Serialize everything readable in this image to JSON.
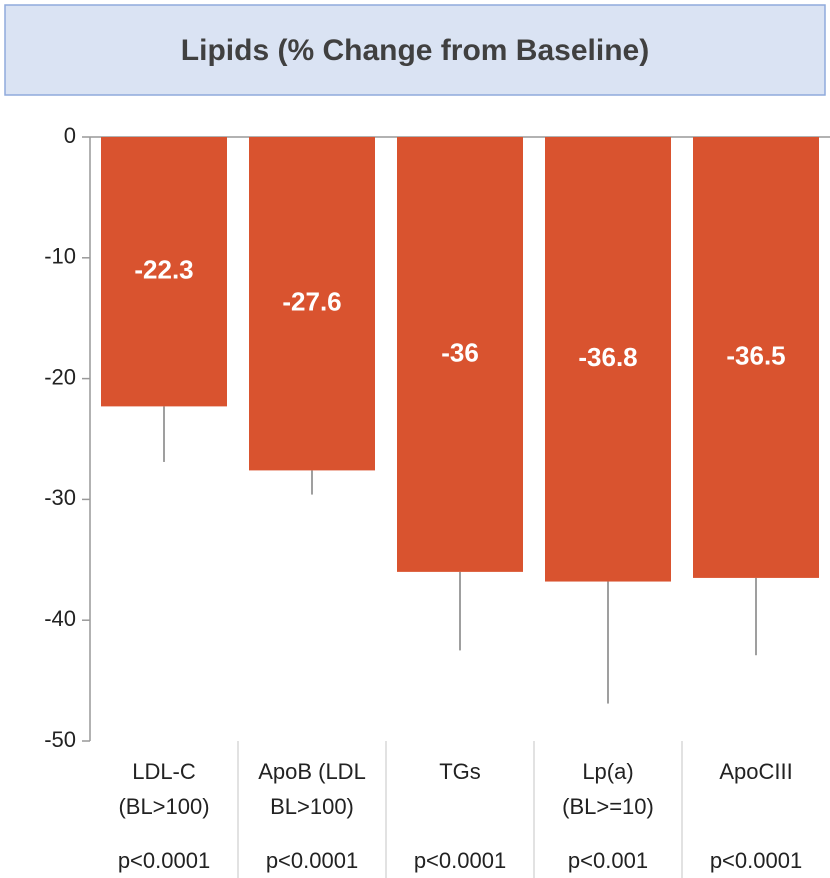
{
  "chart_data": {
    "type": "bar",
    "title": "Lipids (% Change from Baseline)",
    "categories": [
      [
        "LDL-C",
        "(BL>100)"
      ],
      [
        "ApoB (LDL",
        "BL>100)"
      ],
      [
        "TGs"
      ],
      [
        "Lp(a)",
        "(BL>=10)"
      ],
      [
        "ApoCIII"
      ]
    ],
    "p_values": [
      "p<0.0001",
      "p<0.0001",
      "p<0.0001",
      "p<0.001",
      "p<0.0001"
    ],
    "values": [
      -22.3,
      -27.6,
      -36,
      -36.8,
      -36.5
    ],
    "errors": [
      4.6,
      2.0,
      6.5,
      10.1,
      6.4
    ],
    "color": "#d9532f",
    "ylim": [
      -50,
      0
    ],
    "yticks": [
      0,
      -10,
      -20,
      -30,
      -40,
      -50
    ]
  }
}
